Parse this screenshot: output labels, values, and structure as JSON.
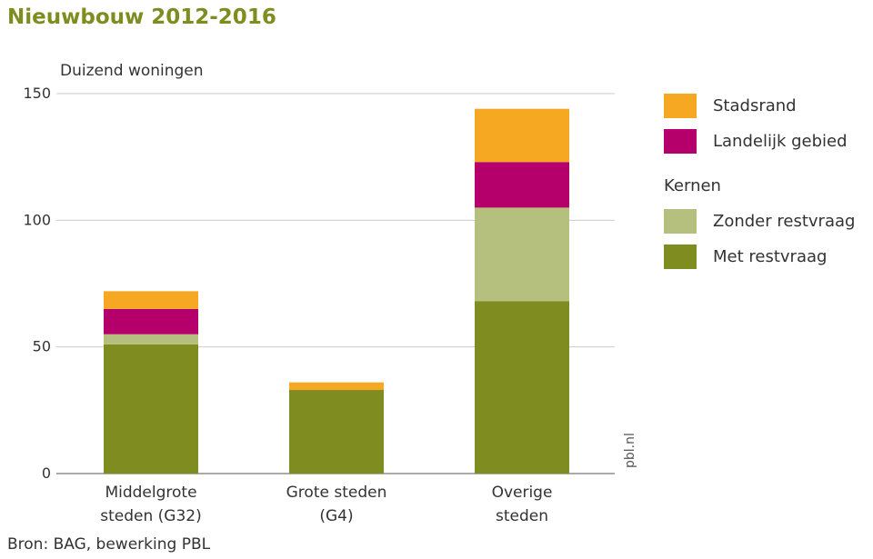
{
  "chart_data": {
    "type": "bar",
    "stacked": true,
    "title": "Nieuwbouw 2012-2016",
    "ylabel": "Duizend woningen",
    "ylim": [
      0,
      150
    ],
    "yticks": [
      0,
      50,
      100,
      150
    ],
    "categories": [
      "Middelgrote steden (G32)",
      "Grote steden (G4)",
      "Overige steden"
    ],
    "category_lines": [
      [
        "Middelgrote",
        "steden (G32)"
      ],
      [
        "Grote steden",
        "(G4)"
      ],
      [
        "Overige",
        "steden"
      ]
    ],
    "series": [
      {
        "name": "Met restvraag",
        "color": "#7f8c1f",
        "values": [
          51,
          33,
          68
        ]
      },
      {
        "name": "Zonder restvraag",
        "color": "#b5c07f",
        "values": [
          4,
          0,
          37
        ]
      },
      {
        "name": "Landelijk gebied",
        "color": "#b5006b",
        "values": [
          10,
          0,
          18
        ]
      },
      {
        "name": "Stadsrand",
        "color": "#f7a823",
        "values": [
          7,
          3,
          21
        ]
      }
    ],
    "legend": {
      "placement": "right",
      "group_heading": "Kernen"
    },
    "grid": true,
    "source": "Bron: BAG, bewerking PBL",
    "watermark": "pbl.nl",
    "colors": {
      "title": "#7f8c1f",
      "grid": "#cccccc",
      "axis": "#555555"
    }
  }
}
